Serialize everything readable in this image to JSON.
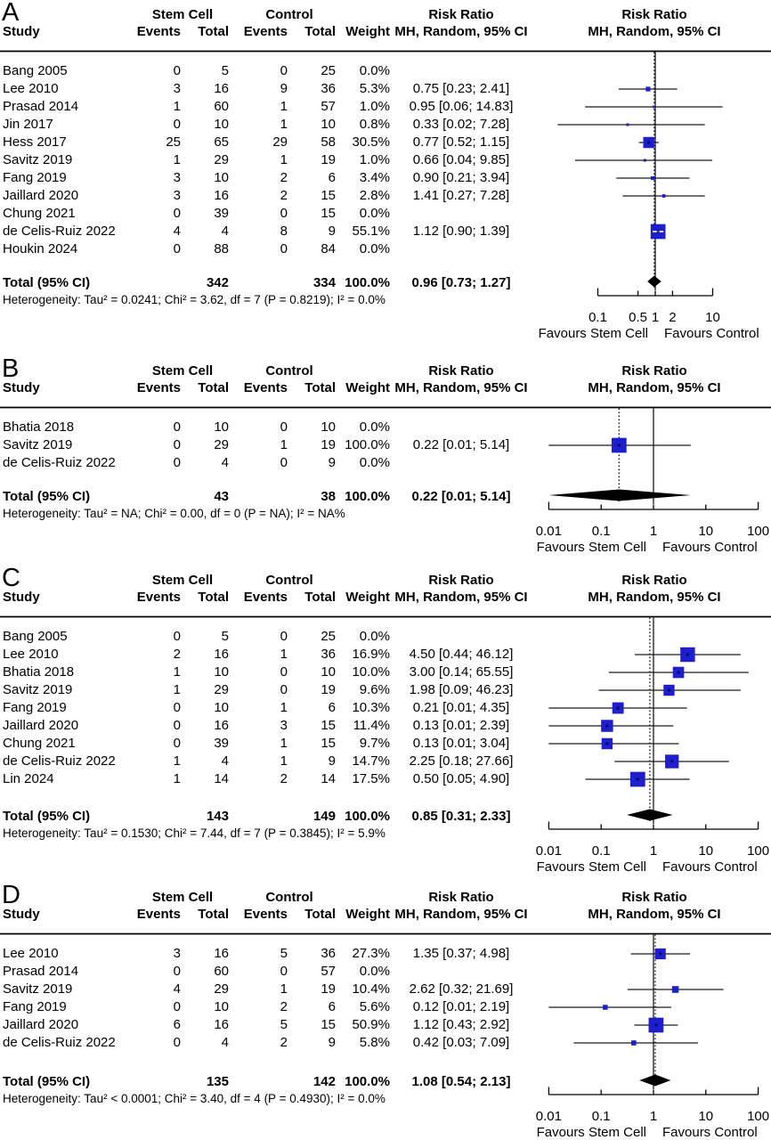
{
  "figure": {
    "headers": {
      "study": "Study",
      "group1": "Stem Cell",
      "group2": "Control",
      "events": "Events",
      "total": "Total",
      "weight": "Weight",
      "risk_ratio": "Risk Ratio",
      "mh": "MH, Random, 95% CI"
    },
    "favours_left": "Favours Stem Cell",
    "favours_right": "Favours Control",
    "colors": {
      "square": "#1e1ecf",
      "diamond": "#000000",
      "ci_line": "#1a1a1a",
      "text": "#000000"
    }
  },
  "chart_data": [
    {
      "type": "scatter",
      "subtype": "forest-plot",
      "label": "A",
      "x_scale": "log",
      "x_tick_labels": [
        "0.1",
        "0.5",
        "1",
        "2",
        "10"
      ],
      "x_ticks": [
        0.1,
        0.5,
        1,
        2,
        10
      ],
      "null_value": 1,
      "studies": [
        {
          "study": "Bang 2005",
          "events1": 0,
          "total1": 5,
          "events2": 0,
          "total2": 25,
          "weight": "0.0%",
          "weight_pct": 0.0,
          "rr_text": "",
          "rr": null,
          "lo": null,
          "hi": null
        },
        {
          "study": "Lee 2010",
          "events1": 3,
          "total1": 16,
          "events2": 9,
          "total2": 36,
          "weight": "5.3%",
          "weight_pct": 5.3,
          "rr_text": "0.75 [0.23;  2.41]",
          "rr": 0.75,
          "lo": 0.23,
          "hi": 2.41
        },
        {
          "study": "Prasad 2014",
          "events1": 1,
          "total1": 60,
          "events2": 1,
          "total2": 57,
          "weight": "1.0%",
          "weight_pct": 1.0,
          "rr_text": "0.95 [0.06; 14.83]",
          "rr": 0.95,
          "lo": 0.06,
          "hi": 14.83
        },
        {
          "study": "Jin 2017",
          "events1": 0,
          "total1": 10,
          "events2": 1,
          "total2": 10,
          "weight": "0.8%",
          "weight_pct": 0.8,
          "rr_text": "0.33 [0.02;  7.28]",
          "rr": 0.33,
          "lo": 0.02,
          "hi": 7.28
        },
        {
          "study": "Hess 2017",
          "events1": 25,
          "total1": 65,
          "events2": 29,
          "total2": 58,
          "weight": "30.5%",
          "weight_pct": 30.5,
          "rr_text": "0.77 [0.52;  1.15]",
          "rr": 0.77,
          "lo": 0.52,
          "hi": 1.15
        },
        {
          "study": "Savitz 2019",
          "events1": 1,
          "total1": 29,
          "events2": 1,
          "total2": 19,
          "weight": "1.0%",
          "weight_pct": 1.0,
          "rr_text": "0.66 [0.04;  9.85]",
          "rr": 0.66,
          "lo": 0.04,
          "hi": 9.85
        },
        {
          "study": "Fang 2019",
          "events1": 3,
          "total1": 10,
          "events2": 2,
          "total2": 6,
          "weight": "3.4%",
          "weight_pct": 3.4,
          "rr_text": "0.90 [0.21;  3.94]",
          "rr": 0.9,
          "lo": 0.21,
          "hi": 3.94
        },
        {
          "study": "Jaillard 2020",
          "events1": 3,
          "total1": 16,
          "events2": 2,
          "total2": 15,
          "weight": "2.8%",
          "weight_pct": 2.8,
          "rr_text": "1.41 [0.27;  7.28]",
          "rr": 1.41,
          "lo": 0.27,
          "hi": 7.28
        },
        {
          "study": "Chung 2021",
          "events1": 0,
          "total1": 39,
          "events2": 0,
          "total2": 15,
          "weight": "0.0%",
          "weight_pct": 0.0,
          "rr_text": "",
          "rr": null,
          "lo": null,
          "hi": null
        },
        {
          "study": "de Celis-Ruiz 2022",
          "events1": 4,
          "total1": 4,
          "events2": 8,
          "total2": 9,
          "weight": "55.1%",
          "weight_pct": 55.1,
          "rr_text": "1.12 [0.90;  1.39]",
          "rr": 1.12,
          "lo": 0.9,
          "hi": 1.39
        },
        {
          "study": "Houkin 2024",
          "events1": 0,
          "total1": 88,
          "events2": 0,
          "total2": 84,
          "weight": "0.0%",
          "weight_pct": 0.0,
          "rr_text": "",
          "rr": null,
          "lo": null,
          "hi": null
        }
      ],
      "total": {
        "label": "Total (95% CI)",
        "total1": 342,
        "total2": 334,
        "weight": "100.0%",
        "rr_text": "0.96 [0.73;  1.27]",
        "rr": 0.96,
        "lo": 0.73,
        "hi": 1.27
      },
      "heterogeneity": "Heterogeneity: Tau² = 0.0241; Chi² = 3.62, df = 7 (P = 0.8219); I² = 0.0%"
    },
    {
      "type": "scatter",
      "subtype": "forest-plot",
      "label": "B",
      "x_scale": "log",
      "x_tick_labels": [
        "0.01",
        "0.1",
        "1",
        "10",
        "100"
      ],
      "x_ticks": [
        0.01,
        0.1,
        1,
        10,
        100
      ],
      "null_value": 1,
      "studies": [
        {
          "study": "Bhatia 2018",
          "events1": 0,
          "total1": 10,
          "events2": 0,
          "total2": 10,
          "weight": "0.0%",
          "weight_pct": 0.0,
          "rr_text": "",
          "rr": null,
          "lo": null,
          "hi": null
        },
        {
          "study": "Savitz 2019",
          "events1": 0,
          "total1": 29,
          "events2": 1,
          "total2": 19,
          "weight": "100.0%",
          "weight_pct": 100.0,
          "rr_text": "0.22 [0.01; 5.14]",
          "rr": 0.22,
          "lo": 0.01,
          "hi": 5.14
        },
        {
          "study": "de Celis-Ruiz 2022",
          "events1": 0,
          "total1": 4,
          "events2": 0,
          "total2": 9,
          "weight": "0.0%",
          "weight_pct": 0.0,
          "rr_text": "",
          "rr": null,
          "lo": null,
          "hi": null
        }
      ],
      "total": {
        "label": "Total (95% CI)",
        "total1": 43,
        "total2": 38,
        "weight": "100.0%",
        "rr_text": "0.22 [0.01; 5.14]",
        "rr": 0.22,
        "lo": 0.01,
        "hi": 5.14
      },
      "heterogeneity": "Heterogeneity: Tau² = NA; Chi² = 0.00, df = 0 (P = NA); I² = NA%"
    },
    {
      "type": "scatter",
      "subtype": "forest-plot",
      "label": "C",
      "x_scale": "log",
      "x_tick_labels": [
        "0.01",
        "0.1",
        "1",
        "10",
        "100"
      ],
      "x_ticks": [
        0.01,
        0.1,
        1,
        10,
        100
      ],
      "null_value": 1,
      "studies": [
        {
          "study": "Bang 2005",
          "events1": 0,
          "total1": 5,
          "events2": 0,
          "total2": 25,
          "weight": "0.0%",
          "weight_pct": 0.0,
          "rr_text": "",
          "rr": null,
          "lo": null,
          "hi": null
        },
        {
          "study": "Lee 2010",
          "events1": 2,
          "total1": 16,
          "events2": 1,
          "total2": 36,
          "weight": "16.9%",
          "weight_pct": 16.9,
          "rr_text": "4.50 [0.44; 46.12]",
          "rr": 4.5,
          "lo": 0.44,
          "hi": 46.12
        },
        {
          "study": "Bhatia 2018",
          "events1": 1,
          "total1": 10,
          "events2": 0,
          "total2": 10,
          "weight": "10.0%",
          "weight_pct": 10.0,
          "rr_text": "3.00 [0.14; 65.55]",
          "rr": 3.0,
          "lo": 0.14,
          "hi": 65.55
        },
        {
          "study": "Savitz 2019",
          "events1": 1,
          "total1": 29,
          "events2": 0,
          "total2": 19,
          "weight": "9.6%",
          "weight_pct": 9.6,
          "rr_text": "1.98 [0.09; 46.23]",
          "rr": 1.98,
          "lo": 0.09,
          "hi": 46.23
        },
        {
          "study": "Fang 2019",
          "events1": 0,
          "total1": 10,
          "events2": 1,
          "total2": 6,
          "weight": "10.3%",
          "weight_pct": 10.3,
          "rr_text": "0.21 [0.01;  4.35]",
          "rr": 0.21,
          "lo": 0.01,
          "hi": 4.35
        },
        {
          "study": "Jaillard 2020",
          "events1": 0,
          "total1": 16,
          "events2": 3,
          "total2": 15,
          "weight": "11.4%",
          "weight_pct": 11.4,
          "rr_text": "0.13 [0.01;  2.39]",
          "rr": 0.13,
          "lo": 0.01,
          "hi": 2.39
        },
        {
          "study": "Chung 2021",
          "events1": 0,
          "total1": 39,
          "events2": 1,
          "total2": 15,
          "weight": "9.7%",
          "weight_pct": 9.7,
          "rr_text": "0.13 [0.01;  3.04]",
          "rr": 0.13,
          "lo": 0.01,
          "hi": 3.04
        },
        {
          "study": "de Celis-Ruiz 2022",
          "events1": 1,
          "total1": 4,
          "events2": 1,
          "total2": 9,
          "weight": "14.7%",
          "weight_pct": 14.7,
          "rr_text": "2.25 [0.18; 27.66]",
          "rr": 2.25,
          "lo": 0.18,
          "hi": 27.66
        },
        {
          "study": "Lin 2024",
          "events1": 1,
          "total1": 14,
          "events2": 2,
          "total2": 14,
          "weight": "17.5%",
          "weight_pct": 17.5,
          "rr_text": "0.50 [0.05;  4.90]",
          "rr": 0.5,
          "lo": 0.05,
          "hi": 4.9
        }
      ],
      "total": {
        "label": "Total (95% CI)",
        "total1": 143,
        "total2": 149,
        "weight": "100.0%",
        "rr_text": "0.85 [0.31;  2.33]",
        "rr": 0.85,
        "lo": 0.31,
        "hi": 2.33
      },
      "heterogeneity": "Heterogeneity: Tau² = 0.1530; Chi² = 7.44, df = 7 (P = 0.3845); I² = 5.9%"
    },
    {
      "type": "scatter",
      "subtype": "forest-plot",
      "label": "D",
      "x_scale": "log",
      "x_tick_labels": [
        "0.01",
        "0.1",
        "1",
        "10",
        "100"
      ],
      "x_ticks": [
        0.01,
        0.1,
        1,
        10,
        100
      ],
      "null_value": 1,
      "studies": [
        {
          "study": "Lee 2010",
          "events1": 3,
          "total1": 16,
          "events2": 5,
          "total2": 36,
          "weight": "27.3%",
          "weight_pct": 27.3,
          "rr_text": "1.35 [0.37;  4.98]",
          "rr": 1.35,
          "lo": 0.37,
          "hi": 4.98
        },
        {
          "study": "Prasad 2014",
          "events1": 0,
          "total1": 60,
          "events2": 0,
          "total2": 57,
          "weight": "0.0%",
          "weight_pct": 0.0,
          "rr_text": "",
          "rr": null,
          "lo": null,
          "hi": null
        },
        {
          "study": "Savitz 2019",
          "events1": 4,
          "total1": 29,
          "events2": 1,
          "total2": 19,
          "weight": "10.4%",
          "weight_pct": 10.4,
          "rr_text": "2.62 [0.32; 21.69]",
          "rr": 2.62,
          "lo": 0.32,
          "hi": 21.69
        },
        {
          "study": "Fang 2019",
          "events1": 0,
          "total1": 10,
          "events2": 2,
          "total2": 6,
          "weight": "5.6%",
          "weight_pct": 5.6,
          "rr_text": "0.12 [0.01;  2.19]",
          "rr": 0.12,
          "lo": 0.01,
          "hi": 2.19
        },
        {
          "study": "Jaillard 2020",
          "events1": 6,
          "total1": 16,
          "events2": 5,
          "total2": 15,
          "weight": "50.9%",
          "weight_pct": 50.9,
          "rr_text": "1.12 [0.43;  2.92]",
          "rr": 1.12,
          "lo": 0.43,
          "hi": 2.92
        },
        {
          "study": "de Celis-Ruiz 2022",
          "events1": 0,
          "total1": 4,
          "events2": 2,
          "total2": 9,
          "weight": "5.8%",
          "weight_pct": 5.8,
          "rr_text": "0.42 [0.03;  7.09]",
          "rr": 0.42,
          "lo": 0.03,
          "hi": 7.09
        }
      ],
      "total": {
        "label": "Total (95% CI)",
        "total1": 135,
        "total2": 142,
        "weight": "100.0%",
        "rr_text": "1.08 [0.54;  2.13]",
        "rr": 1.08,
        "lo": 0.54,
        "hi": 2.13
      },
      "heterogeneity": "Heterogeneity: Tau² < 0.0001; Chi² = 3.40, df = 4 (P = 0.4930); I² = 0.0%"
    }
  ]
}
